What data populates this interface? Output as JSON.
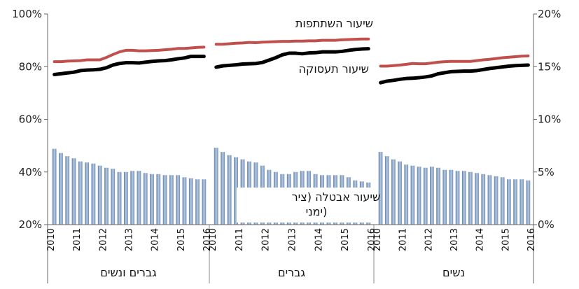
{
  "chart_data": {
    "type": "bar",
    "y_left": {
      "ylim": [
        20,
        100
      ],
      "ticks": [
        "20%",
        "40%",
        "60%",
        "80%",
        "100%"
      ],
      "tick_values": [
        20,
        40,
        60,
        80,
        100
      ]
    },
    "y_right": {
      "ylim": [
        0,
        20
      ],
      "ticks": [
        "0%",
        "5%",
        "10%",
        "15%",
        "20%"
      ],
      "tick_values": [
        0,
        5,
        10,
        15,
        20
      ]
    },
    "annotations": {
      "participation": "שיעור השתתפות",
      "employment": "שיעור תעסוקה",
      "unemployment_line1": "שיעור אבטלה (ציר",
      "unemployment_line2": "ימני)"
    },
    "series_colors": {
      "participation": "#c0504d",
      "employment": "#000000",
      "unemployment": "#8fa9cc"
    },
    "panels": [
      {
        "group_label": "גברים ונשים",
        "year_labels": [
          "2010",
          "2011",
          "2012",
          "2013",
          "2014",
          "2015",
          "2016"
        ],
        "participation": [
          81.9,
          81.9,
          82.1,
          82.2,
          82.3,
          82.6,
          82.6,
          82.6,
          83.5,
          84.6,
          85.6,
          86.2,
          86.2,
          86.0,
          86.0,
          86.1,
          86.2,
          86.4,
          86.6,
          86.9,
          86.9,
          87.1,
          87.3,
          87.4
        ],
        "employment": [
          77.0,
          77.3,
          77.6,
          77.9,
          78.5,
          78.7,
          78.8,
          79.0,
          79.6,
          80.6,
          81.2,
          81.5,
          81.5,
          81.4,
          81.7,
          82.0,
          82.2,
          82.3,
          82.6,
          83.0,
          83.3,
          83.9,
          83.9,
          83.9
        ],
        "unemployment": [
          7.2,
          6.8,
          6.5,
          6.3,
          6.0,
          5.9,
          5.8,
          5.6,
          5.4,
          5.3,
          5.0,
          5.0,
          5.1,
          5.1,
          4.9,
          4.8,
          4.8,
          4.7,
          4.7,
          4.7,
          4.5,
          4.4,
          4.3,
          4.3
        ]
      },
      {
        "group_label": "גברים",
        "year_labels": [
          "2010",
          "2011",
          "2012",
          "2013",
          "2014",
          "2015",
          "2016"
        ],
        "participation": [
          88.5,
          88.5,
          88.7,
          88.9,
          89.0,
          89.2,
          89.1,
          89.3,
          89.4,
          89.5,
          89.6,
          89.6,
          89.7,
          89.7,
          89.8,
          89.8,
          90.0,
          90.0,
          90.0,
          90.2,
          90.3,
          90.4,
          90.5,
          90.5
        ],
        "employment": [
          79.8,
          80.3,
          80.5,
          80.7,
          81.0,
          81.1,
          81.2,
          81.6,
          82.5,
          83.4,
          84.5,
          85.1,
          85.1,
          84.9,
          85.2,
          85.3,
          85.6,
          85.6,
          85.6,
          85.8,
          86.2,
          86.5,
          86.7,
          86.8
        ],
        "unemployment": [
          7.3,
          6.9,
          6.6,
          6.4,
          6.2,
          6.0,
          5.9,
          5.6,
          5.2,
          5.0,
          4.8,
          4.8,
          5.0,
          5.1,
          5.1,
          4.8,
          4.7,
          4.7,
          4.7,
          4.7,
          4.5,
          4.2,
          4.1,
          4.0
        ]
      },
      {
        "group_label": "נשים",
        "year_labels": [
          "2010",
          "2011",
          "2012",
          "2013",
          "2014",
          "2015",
          "2016"
        ],
        "participation": [
          80.2,
          80.2,
          80.4,
          80.6,
          80.9,
          81.2,
          81.1,
          81.1,
          81.4,
          81.7,
          81.9,
          82.0,
          82.0,
          82.0,
          82.0,
          82.3,
          82.6,
          82.8,
          83.1,
          83.4,
          83.6,
          83.8,
          84.0,
          84.1
        ],
        "employment": [
          73.9,
          74.5,
          74.8,
          75.2,
          75.5,
          75.6,
          75.8,
          76.1,
          76.5,
          77.3,
          77.7,
          78.1,
          78.2,
          78.3,
          78.3,
          78.5,
          78.9,
          79.3,
          79.6,
          79.9,
          80.2,
          80.4,
          80.5,
          80.6
        ],
        "unemployment": [
          6.9,
          6.5,
          6.2,
          6.0,
          5.7,
          5.6,
          5.5,
          5.4,
          5.5,
          5.4,
          5.2,
          5.2,
          5.1,
          5.1,
          5.0,
          4.9,
          4.8,
          4.7,
          4.6,
          4.5,
          4.3,
          4.3,
          4.3,
          4.2
        ]
      }
    ]
  }
}
